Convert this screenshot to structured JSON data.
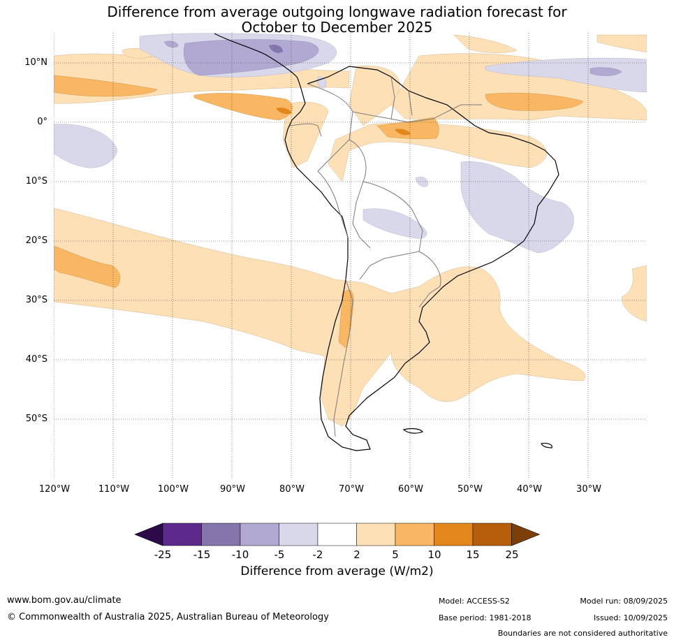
{
  "title": {
    "line1": "Difference from average outgoing longwave radiation forecast for",
    "line2": "October to December 2025"
  },
  "map": {
    "lat_labels": [
      "10°N",
      "0°",
      "10°S",
      "20°S",
      "30°S",
      "40°S",
      "50°S"
    ],
    "lon_labels": [
      "120°W",
      "110°W",
      "100°W",
      "90°W",
      "80°W",
      "70°W",
      "60°W",
      "50°W",
      "40°W",
      "30°W"
    ],
    "grid": true
  },
  "colorbar": {
    "ticks": [
      "-25",
      "-15",
      "-10",
      "-5",
      "-2",
      "2",
      "5",
      "10",
      "15",
      "25"
    ],
    "colors": [
      "#2d0a4a",
      "#5b2a8c",
      "#8575ad",
      "#b1a9d1",
      "#d9d8ea",
      "#ffffff",
      "#fde0b6",
      "#f9b764",
      "#e3861c",
      "#b65e0b",
      "#7c3f0a"
    ],
    "label": "Difference from average (W/m2)"
  },
  "footer": {
    "url": "www.bom.gov.au/climate",
    "copyright": "© Commonwealth of Australia 2025, Australian Bureau of Meteorology",
    "model": "Model: ACCESS-S2",
    "base_period": "Base period: 1981-2018",
    "model_run": "Model run: 08/09/2025",
    "issued": "Issued: 10/09/2025",
    "boundaries": "Boundaries are not considered authoritative"
  }
}
